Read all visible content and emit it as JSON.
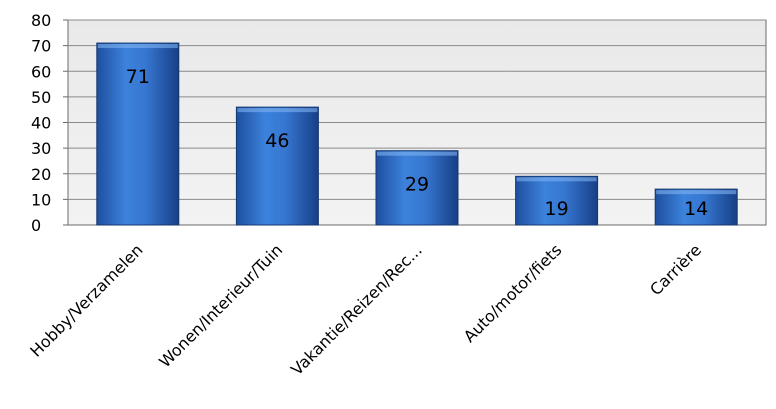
{
  "chart_data": {
    "type": "bar",
    "categories": [
      "Hobby/Verzamelen",
      "Wonen/Interieur/Tuin",
      "Vakantie/Reizen/Rec...",
      "Auto/motor/fiets",
      "Carrière"
    ],
    "values": [
      71,
      46,
      29,
      19,
      14
    ],
    "data_labels": [
      "71",
      "46",
      "29",
      "19",
      "14"
    ],
    "title": "",
    "xlabel": "",
    "ylabel": "",
    "ylim": [
      0,
      80
    ],
    "yticks": [
      "0",
      "10",
      "20",
      "30",
      "40",
      "50",
      "60",
      "70",
      "80"
    ],
    "grid": true,
    "legend": "none",
    "colors": {
      "bar_light": "#5a9ae6",
      "bar_mid": "#2f6fcb",
      "bar_dark": "#173f86",
      "plot_bg": "#ededed",
      "grid": "#8a8a8a",
      "axis": "#6b6b6b"
    }
  }
}
